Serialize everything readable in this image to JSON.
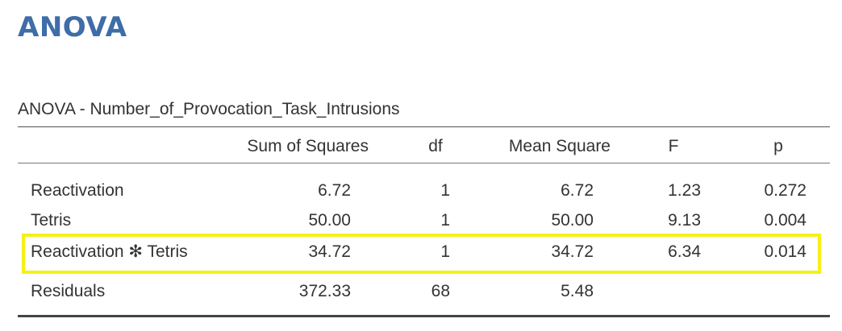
{
  "heading": "ANOVA",
  "table": {
    "title": "ANOVA - Number_of_Provocation_Task_Intrusions",
    "columns": [
      "",
      "Sum of Squares",
      "df",
      "Mean Square",
      "F",
      "p"
    ],
    "rows": [
      {
        "term": "Reactivation",
        "ss": "6.72",
        "df": "1",
        "ms": "6.72",
        "f": "1.23",
        "p": "0.272"
      },
      {
        "term": "Tetris",
        "ss": "50.00",
        "df": "1",
        "ms": "50.00",
        "f": "9.13",
        "p": "0.004"
      },
      {
        "term": "Reactivation ✻ Tetris",
        "ss": "34.72",
        "df": "1",
        "ms": "34.72",
        "f": "6.34",
        "p": "0.014"
      },
      {
        "term": "Residuals",
        "ss": "372.33",
        "df": "68",
        "ms": "5.48",
        "f": "",
        "p": ""
      }
    ]
  },
  "highlight_color": "#f5f015",
  "heading_color": "#3e6da8"
}
